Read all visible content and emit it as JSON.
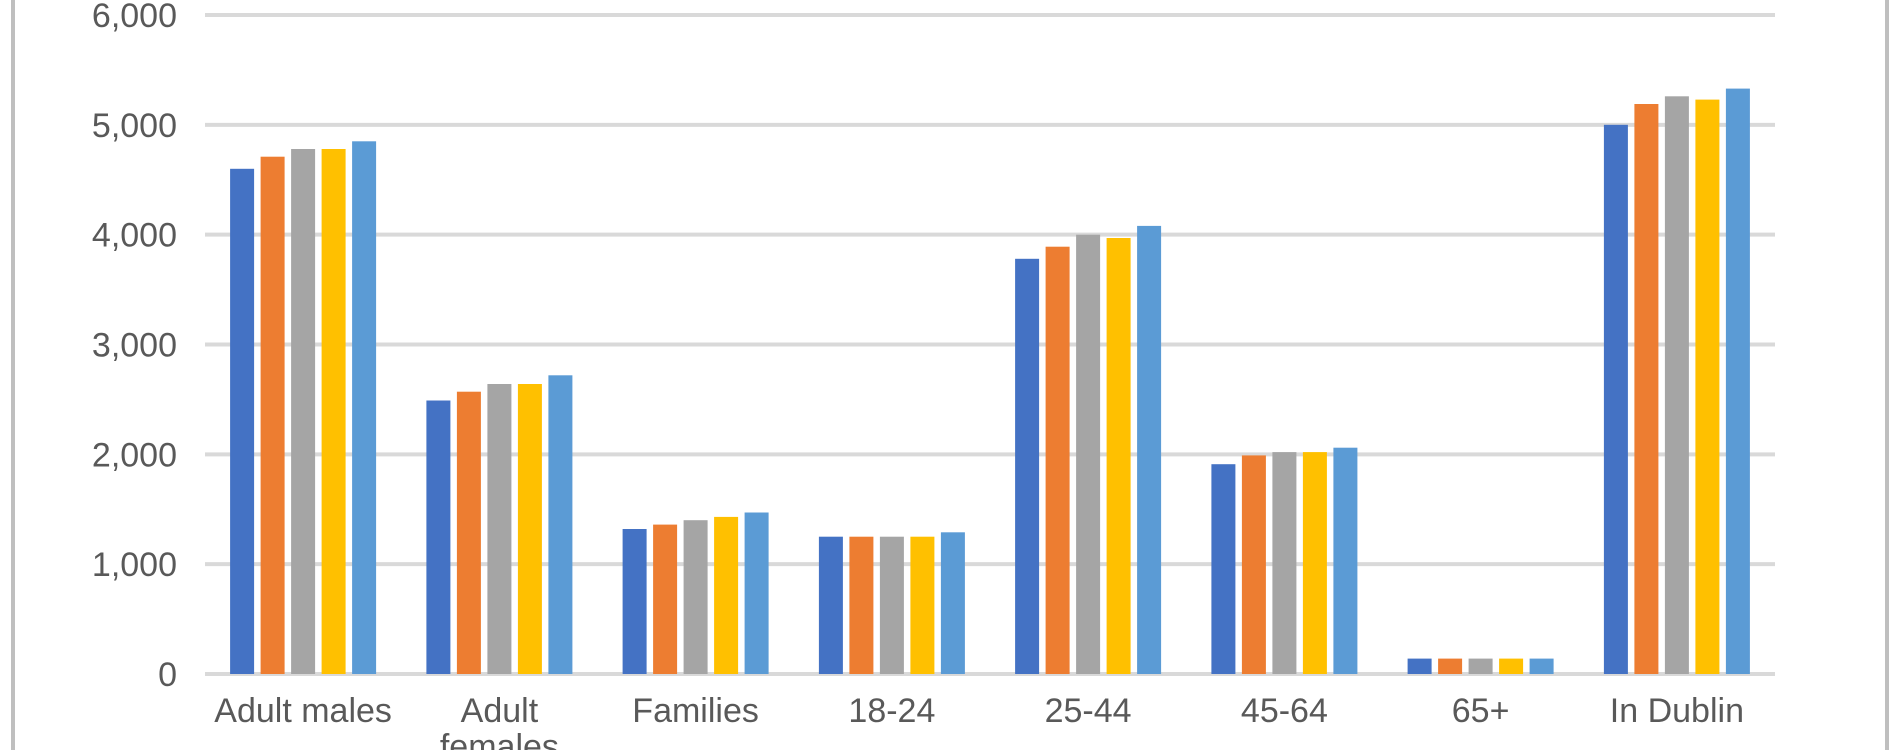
{
  "chart_data": {
    "type": "bar",
    "title": "",
    "xlabel": "",
    "ylabel": "",
    "ylim": [
      0,
      6000
    ],
    "yticks": [
      {
        "value": 0,
        "label": "0"
      },
      {
        "value": 1000,
        "label": "1,000"
      },
      {
        "value": 2000,
        "label": "2,000"
      },
      {
        "value": 3000,
        "label": "3,000"
      },
      {
        "value": 4000,
        "label": "4,000"
      },
      {
        "value": 5000,
        "label": "5,000"
      },
      {
        "value": 6000,
        "label": "6,000"
      }
    ],
    "grid": true,
    "legend": "none",
    "categories": [
      [
        "Adult males"
      ],
      [
        "Adult",
        "females"
      ],
      [
        "Families"
      ],
      [
        "18-24"
      ],
      [
        "25-44"
      ],
      [
        "45-64"
      ],
      [
        "65+"
      ],
      [
        "In Dublin"
      ]
    ],
    "series": [
      {
        "color": "#4472C4",
        "values": [
          4600,
          2490,
          1320,
          1250,
          3780,
          1910,
          140,
          5000
        ]
      },
      {
        "color": "#ED7D31",
        "values": [
          4710,
          2570,
          1360,
          1250,
          3890,
          1990,
          140,
          5190
        ]
      },
      {
        "color": "#A5A5A5",
        "values": [
          4780,
          2640,
          1400,
          1250,
          4000,
          2020,
          140,
          5260
        ]
      },
      {
        "color": "#FFC000",
        "values": [
          4780,
          2640,
          1430,
          1250,
          3970,
          2020,
          140,
          5230
        ]
      },
      {
        "color": "#5B9BD5",
        "values": [
          4850,
          2720,
          1470,
          1290,
          4080,
          2060,
          140,
          5330
        ]
      }
    ]
  }
}
